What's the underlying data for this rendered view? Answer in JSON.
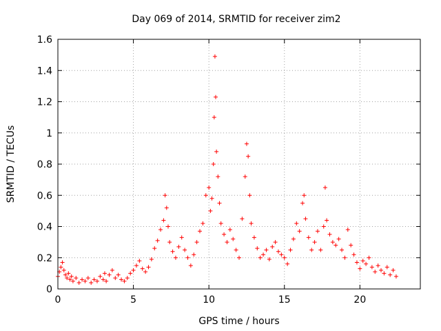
{
  "chart_data": {
    "type": "scatter",
    "title": "Day 069 of 2014, SRMTID for receiver zim2",
    "xlabel": "GPS time / hours",
    "ylabel": "SRMTID / TECUs",
    "xlim": [
      0,
      24
    ],
    "ylim": [
      0,
      1.6
    ],
    "xticks": [
      {
        "value": 0,
        "label": "0"
      },
      {
        "value": 5,
        "label": "5"
      },
      {
        "value": 10,
        "label": "10"
      },
      {
        "value": 15,
        "label": "15"
      },
      {
        "value": 20,
        "label": "20"
      }
    ],
    "yticks": [
      {
        "value": 0,
        "label": "0"
      },
      {
        "value": 0.2,
        "label": "0.2"
      },
      {
        "value": 0.4,
        "label": "0.4"
      },
      {
        "value": 0.6,
        "label": "0.6"
      },
      {
        "value": 0.8,
        "label": "0.8"
      },
      {
        "value": 1.0,
        "label": "1"
      },
      {
        "value": 1.2,
        "label": "1.2"
      },
      {
        "value": 1.4,
        "label": "1.4"
      },
      {
        "value": 1.6,
        "label": "1.6"
      }
    ],
    "grid": true,
    "marker": "+",
    "color": "#ff0000",
    "series": [
      {
        "name": "zim2",
        "x": [
          0.0,
          0.1,
          0.2,
          0.3,
          0.4,
          0.5,
          0.6,
          0.7,
          0.8,
          0.9,
          1.0,
          1.2,
          1.4,
          1.6,
          1.8,
          2.0,
          2.2,
          2.4,
          2.6,
          2.8,
          3.0,
          3.1,
          3.2,
          3.4,
          3.6,
          3.8,
          4.0,
          4.2,
          4.4,
          4.6,
          4.8,
          5.0,
          5.2,
          5.4,
          5.6,
          5.8,
          6.0,
          6.2,
          6.4,
          6.6,
          6.8,
          7.0,
          7.1,
          7.2,
          7.3,
          7.4,
          7.6,
          7.8,
          8.0,
          8.2,
          8.4,
          8.6,
          8.8,
          9.0,
          9.2,
          9.4,
          9.6,
          9.8,
          10.0,
          10.1,
          10.2,
          10.3,
          10.35,
          10.4,
          10.45,
          10.5,
          10.6,
          10.7,
          10.8,
          11.0,
          11.2,
          11.4,
          11.6,
          11.8,
          12.0,
          12.2,
          12.4,
          12.5,
          12.6,
          12.7,
          12.8,
          13.0,
          13.2,
          13.4,
          13.6,
          13.8,
          14.0,
          14.2,
          14.4,
          14.6,
          14.8,
          15.0,
          15.2,
          15.4,
          15.6,
          15.8,
          16.0,
          16.2,
          16.3,
          16.4,
          16.6,
          16.8,
          17.0,
          17.2,
          17.4,
          17.6,
          17.7,
          17.8,
          18.0,
          18.2,
          18.4,
          18.6,
          18.8,
          19.0,
          19.2,
          19.4,
          19.6,
          19.8,
          20.0,
          20.2,
          20.4,
          20.6,
          20.8,
          21.0,
          21.2,
          21.4,
          21.6,
          21.8,
          22.0,
          22.2,
          22.4
        ],
        "y": [
          0.08,
          0.11,
          0.14,
          0.17,
          0.12,
          0.09,
          0.07,
          0.1,
          0.06,
          0.08,
          0.05,
          0.07,
          0.04,
          0.06,
          0.05,
          0.07,
          0.04,
          0.06,
          0.05,
          0.08,
          0.06,
          0.1,
          0.05,
          0.09,
          0.12,
          0.07,
          0.09,
          0.06,
          0.05,
          0.07,
          0.1,
          0.12,
          0.15,
          0.18,
          0.13,
          0.11,
          0.14,
          0.19,
          0.26,
          0.31,
          0.38,
          0.44,
          0.6,
          0.52,
          0.4,
          0.3,
          0.24,
          0.2,
          0.27,
          0.33,
          0.25,
          0.2,
          0.15,
          0.22,
          0.3,
          0.37,
          0.42,
          0.6,
          0.65,
          0.5,
          0.58,
          0.8,
          1.1,
          1.49,
          1.23,
          0.88,
          0.72,
          0.55,
          0.42,
          0.35,
          0.3,
          0.38,
          0.32,
          0.25,
          0.2,
          0.45,
          0.72,
          0.93,
          0.85,
          0.6,
          0.42,
          0.33,
          0.26,
          0.2,
          0.22,
          0.25,
          0.19,
          0.27,
          0.3,
          0.24,
          0.22,
          0.2,
          0.16,
          0.25,
          0.32,
          0.42,
          0.37,
          0.55,
          0.6,
          0.45,
          0.33,
          0.25,
          0.3,
          0.37,
          0.25,
          0.4,
          0.65,
          0.44,
          0.35,
          0.3,
          0.28,
          0.32,
          0.25,
          0.2,
          0.38,
          0.28,
          0.22,
          0.17,
          0.13,
          0.18,
          0.16,
          0.2,
          0.14,
          0.11,
          0.15,
          0.12,
          0.1,
          0.14,
          0.09,
          0.12,
          0.08
        ]
      }
    ]
  }
}
